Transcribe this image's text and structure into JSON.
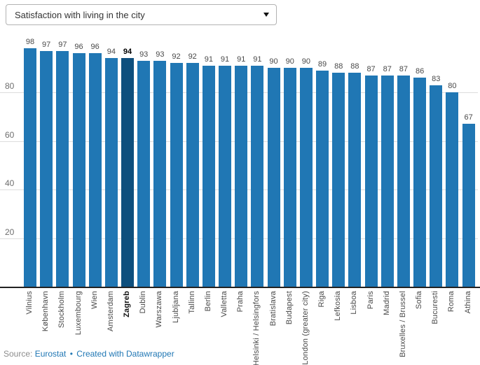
{
  "dropdown": {
    "selected": "Satisfaction with living in the city"
  },
  "footer": {
    "source_label": "Source:",
    "source_link": "Eurostat",
    "separator": "•",
    "credit": "Created with Datawrapper"
  },
  "colors": {
    "bar": "#2077b4",
    "bar_highlight": "#0e4f7d",
    "gridline": "#dddddd",
    "axis_line": "#222222",
    "value_label": "#494949",
    "tick_label": "#6e6e6e",
    "link": "#2077b4"
  },
  "chart_data": {
    "type": "bar",
    "title": "Satisfaction with living in the city",
    "categories": [
      "Vilnius",
      "København",
      "Stockholm",
      "Luxembourg",
      "Wien",
      "Amsterdam",
      "Zagreb",
      "Dublin",
      "Warszawa",
      "Ljubljana",
      "Tallinn",
      "Berlin",
      "Valletta",
      "Praha",
      "Helsinki / Helsingfors",
      "Bratislava",
      "Budapest",
      "London (greater city)",
      "Riga",
      "Lefkosia",
      "Lisboa",
      "Paris",
      "Madrid",
      "Bruxelles / Brussel",
      "Sofia",
      "Bucuresti",
      "Roma",
      "Athina"
    ],
    "values": [
      98,
      97,
      97,
      96,
      96,
      94,
      94,
      93,
      93,
      92,
      92,
      91,
      91,
      91,
      91,
      90,
      90,
      90,
      89,
      88,
      88,
      87,
      87,
      87,
      86,
      83,
      80,
      67
    ],
    "highlight_category": "Zagreb",
    "xlabel": "",
    "ylabel": "",
    "ylim": [
      0,
      100
    ],
    "yticks": [
      20,
      40,
      60,
      80
    ],
    "grid": true,
    "legend": "none",
    "value_labels": true
  }
}
